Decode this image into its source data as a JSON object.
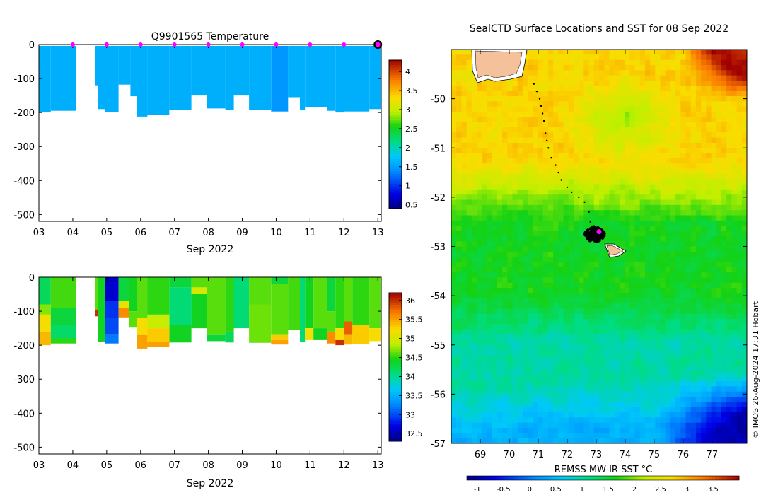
{
  "chart_data": [
    {
      "id": "temperature",
      "type": "heatmap",
      "title": "Q9901565  Temperature",
      "xlabel": "Sep 2022",
      "x_ticks": [
        "03",
        "04",
        "05",
        "06",
        "07",
        "08",
        "09",
        "10",
        "11",
        "12",
        "13"
      ],
      "x_range": [
        3.0,
        13.1
      ],
      "ylim": [
        -520,
        0
      ],
      "y_ticks": [
        0,
        -100,
        -200,
        -300,
        -400,
        -500
      ],
      "colorbar": {
        "ticks": [
          0.5,
          1,
          1.5,
          2,
          2.5,
          3,
          3.5,
          4
        ],
        "range": [
          0.4,
          4.3
        ]
      },
      "surface_markers_day": [
        4,
        5,
        6,
        7,
        8,
        9,
        10,
        11,
        12
      ],
      "current_marker_day": 13,
      "profiles": [
        {
          "x0": 3.0,
          "x1": 3.35,
          "depth": 200,
          "value": 1.6
        },
        {
          "x0": 3.35,
          "x1": 4.1,
          "depth": 195,
          "value": 1.6
        },
        {
          "x0": 4.65,
          "x1": 4.75,
          "depth": 120,
          "value": 1.6
        },
        {
          "x0": 4.75,
          "x1": 4.95,
          "depth": 190,
          "value": 1.6
        },
        {
          "x0": 4.95,
          "x1": 5.35,
          "depth": 198,
          "value": 1.6
        },
        {
          "x0": 5.35,
          "x1": 5.7,
          "depth": 118,
          "value": 1.6
        },
        {
          "x0": 5.7,
          "x1": 5.9,
          "depth": 152,
          "value": 1.6
        },
        {
          "x0": 5.9,
          "x1": 6.2,
          "depth": 212,
          "value": 1.6
        },
        {
          "x0": 6.2,
          "x1": 6.85,
          "depth": 208,
          "value": 1.6
        },
        {
          "x0": 6.85,
          "x1": 7.5,
          "depth": 192,
          "value": 1.6
        },
        {
          "x0": 7.5,
          "x1": 7.95,
          "depth": 150,
          "value": 1.6
        },
        {
          "x0": 7.95,
          "x1": 8.5,
          "depth": 188,
          "value": 1.6
        },
        {
          "x0": 8.5,
          "x1": 8.75,
          "depth": 192,
          "value": 1.6
        },
        {
          "x0": 8.75,
          "x1": 9.2,
          "depth": 150,
          "value": 1.6
        },
        {
          "x0": 9.2,
          "x1": 9.85,
          "depth": 193,
          "value": 1.6
        },
        {
          "x0": 9.85,
          "x1": 10.35,
          "depth": 197,
          "value": 1.45
        },
        {
          "x0": 10.35,
          "x1": 10.7,
          "depth": 155,
          "value": 1.6
        },
        {
          "x0": 10.7,
          "x1": 10.85,
          "depth": 192,
          "value": 1.6
        },
        {
          "x0": 10.85,
          "x1": 11.5,
          "depth": 185,
          "value": 1.6
        },
        {
          "x0": 11.5,
          "x1": 11.75,
          "depth": 195,
          "value": 1.6
        },
        {
          "x0": 11.75,
          "x1": 12.0,
          "depth": 200,
          "value": 1.6
        },
        {
          "x0": 12.0,
          "x1": 12.75,
          "depth": 197,
          "value": 1.6
        },
        {
          "x0": 12.75,
          "x1": 13.1,
          "depth": 190,
          "value": 1.6
        }
      ]
    },
    {
      "id": "salinity",
      "type": "heatmap",
      "title": "",
      "xlabel": "Sep 2022",
      "x_ticks": [
        "03",
        "04",
        "05",
        "06",
        "07",
        "08",
        "09",
        "10",
        "11",
        "12",
        "13"
      ],
      "x_range": [
        3.0,
        13.1
      ],
      "ylim": [
        -520,
        0
      ],
      "y_ticks": [
        0,
        -100,
        -200,
        -300,
        -400,
        -500
      ],
      "colorbar": {
        "ticks": [
          32.5,
          33,
          33.5,
          34,
          34.5,
          35,
          35.5,
          36
        ],
        "range": [
          32.3,
          36.2
        ]
      },
      "profiles": [
        {
          "x0": 3.0,
          "x1": 3.35,
          "depth": 200,
          "bands": [
            [
              0,
              80,
              34.2
            ],
            [
              80,
              110,
              34.7
            ],
            [
              110,
              160,
              35.2
            ],
            [
              160,
              200,
              35.4
            ]
          ]
        },
        {
          "x0": 3.35,
          "x1": 4.1,
          "depth": 195,
          "bands": [
            [
              0,
              90,
              34.55
            ],
            [
              90,
              140,
              34.3
            ],
            [
              140,
              180,
              34.15
            ],
            [
              180,
              195,
              34.5
            ]
          ]
        },
        {
          "x0": 4.65,
          "x1": 4.75,
          "depth": 115,
          "bands": [
            [
              0,
              95,
              34.6
            ],
            [
              95,
              115,
              36.0
            ]
          ]
        },
        {
          "x0": 4.75,
          "x1": 4.95,
          "depth": 190,
          "bands": [
            [
              0,
              190,
              34.4
            ]
          ]
        },
        {
          "x0": 4.95,
          "x1": 5.35,
          "depth": 195,
          "bands": [
            [
              0,
              70,
              32.6
            ],
            [
              70,
              120,
              32.9
            ],
            [
              120,
              170,
              33.0
            ],
            [
              170,
              195,
              33.2
            ]
          ]
        },
        {
          "x0": 5.35,
          "x1": 5.65,
          "depth": 118,
          "bands": [
            [
              0,
              70,
              34.3
            ],
            [
              70,
              90,
              35.1
            ],
            [
              90,
              118,
              35.6
            ]
          ]
        },
        {
          "x0": 5.65,
          "x1": 5.9,
          "depth": 148,
          "bands": [
            [
              0,
              100,
              34.4
            ],
            [
              100,
              148,
              34.6
            ]
          ]
        },
        {
          "x0": 5.9,
          "x1": 6.2,
          "depth": 210,
          "bands": [
            [
              0,
              120,
              34.6
            ],
            [
              120,
              170,
              35.2
            ],
            [
              170,
              210,
              35.5
            ]
          ]
        },
        {
          "x0": 6.2,
          "x1": 6.85,
          "depth": 206,
          "bands": [
            [
              0,
              110,
              34.5
            ],
            [
              110,
              150,
              34.9
            ],
            [
              150,
              190,
              35.3
            ],
            [
              190,
              206,
              35.5
            ]
          ]
        },
        {
          "x0": 6.85,
          "x1": 7.5,
          "depth": 192,
          "bands": [
            [
              0,
              30,
              34.3
            ],
            [
              30,
              140,
              34.1
            ],
            [
              140,
              192,
              34.4
            ]
          ]
        },
        {
          "x0": 7.5,
          "x1": 7.95,
          "depth": 150,
          "bands": [
            [
              0,
              30,
              34.6
            ],
            [
              30,
              50,
              35.0
            ],
            [
              50,
              150,
              34.4
            ]
          ]
        },
        {
          "x0": 7.95,
          "x1": 8.5,
          "depth": 188,
          "bands": [
            [
              0,
              170,
              34.6
            ],
            [
              170,
              188,
              34.3
            ]
          ]
        },
        {
          "x0": 8.5,
          "x1": 8.75,
          "depth": 192,
          "bands": [
            [
              0,
              160,
              34.5
            ],
            [
              160,
              192,
              34.2
            ]
          ]
        },
        {
          "x0": 8.75,
          "x1": 9.2,
          "depth": 150,
          "bands": [
            [
              0,
              150,
              34.1
            ]
          ]
        },
        {
          "x0": 9.2,
          "x1": 9.85,
          "depth": 193,
          "bands": [
            [
              0,
              80,
              34.6
            ],
            [
              80,
              193,
              34.65
            ]
          ]
        },
        {
          "x0": 9.85,
          "x1": 10.35,
          "depth": 198,
          "bands": [
            [
              0,
              20,
              34.3
            ],
            [
              20,
              170,
              34.6
            ],
            [
              170,
              185,
              35.3
            ],
            [
              185,
              198,
              35.5
            ]
          ]
        },
        {
          "x0": 10.35,
          "x1": 10.7,
          "depth": 155,
          "bands": [
            [
              0,
              155,
              34.55
            ]
          ]
        },
        {
          "x0": 10.7,
          "x1": 10.85,
          "depth": 190,
          "bands": [
            [
              0,
              190,
              34.1
            ]
          ]
        },
        {
          "x0": 10.85,
          "x1": 11.1,
          "depth": 185,
          "bands": [
            [
              0,
              150,
              34.4
            ],
            [
              150,
              185,
              35.2
            ]
          ]
        },
        {
          "x0": 11.1,
          "x1": 11.5,
          "depth": 185,
          "bands": [
            [
              0,
              150,
              34.6
            ],
            [
              150,
              185,
              34.4
            ]
          ]
        },
        {
          "x0": 11.5,
          "x1": 11.75,
          "depth": 195,
          "bands": [
            [
              0,
              100,
              34.3
            ],
            [
              100,
              160,
              34.6
            ],
            [
              160,
              195,
              35.6
            ]
          ]
        },
        {
          "x0": 11.75,
          "x1": 12.0,
          "depth": 200,
          "bands": [
            [
              0,
              150,
              34.5
            ],
            [
              150,
              185,
              35.2
            ],
            [
              185,
              200,
              36.0
            ]
          ]
        },
        {
          "x0": 12.0,
          "x1": 12.25,
          "depth": 198,
          "bands": [
            [
              0,
              130,
              34.6
            ],
            [
              130,
              170,
              35.8
            ],
            [
              170,
              198,
              35.4
            ]
          ]
        },
        {
          "x0": 12.25,
          "x1": 12.75,
          "depth": 197,
          "bands": [
            [
              0,
              140,
              34.5
            ],
            [
              140,
              197,
              35.3
            ]
          ]
        },
        {
          "x0": 12.75,
          "x1": 13.1,
          "depth": 188,
          "bands": [
            [
              0,
              150,
              34.6
            ],
            [
              150,
              188,
              35.2
            ]
          ]
        }
      ]
    },
    {
      "id": "sst_map",
      "type": "heatmap",
      "title": "SealCTD Surface Locations and SST for 08 Sep 2022",
      "x_ticks": [
        "69",
        "70",
        "71",
        "72",
        "73",
        "74",
        "75",
        "76",
        "77"
      ],
      "x_range": [
        68.0,
        78.2
      ],
      "y_ticks": [
        "-50",
        "-51",
        "-52",
        "-53",
        "-54",
        "-55",
        "-56",
        "-57"
      ],
      "y_range": [
        -57.0,
        -49.0
      ],
      "colorbar_label": "REMSS MW-IR SST °C",
      "colorbar_ticks": [
        "-1",
        "-0.5",
        "0",
        "0.5",
        "1",
        "1.5",
        "2",
        "2.5",
        "3",
        "3.5"
      ],
      "colorbar_range": [
        -1.2,
        4.0
      ],
      "sst_regions": [
        {
          "zone": "north",
          "value": 2.75
        },
        {
          "zone": "northeast",
          "value": 3.9
        },
        {
          "zone": "central",
          "value": 1.6
        },
        {
          "zone": "south",
          "value": 1.0
        },
        {
          "zone": "southwest",
          "value": 0.4
        },
        {
          "zone": "southeast",
          "value": -0.9
        }
      ],
      "track_points": [
        [
          70.85,
          -49.7
        ],
        [
          70.95,
          -49.85
        ],
        [
          71.05,
          -50.0
        ],
        [
          71.1,
          -50.15
        ],
        [
          71.15,
          -50.3
        ],
        [
          71.2,
          -50.45
        ],
        [
          71.25,
          -50.7
        ],
        [
          71.3,
          -50.85
        ],
        [
          71.35,
          -51.0
        ],
        [
          71.45,
          -51.2
        ],
        [
          71.6,
          -51.35
        ],
        [
          71.7,
          -51.5
        ],
        [
          71.8,
          -51.65
        ],
        [
          72.0,
          -51.8
        ],
        [
          72.15,
          -51.9
        ],
        [
          72.4,
          -52.0
        ],
        [
          72.6,
          -52.1
        ],
        [
          72.75,
          -52.3
        ],
        [
          72.8,
          -52.5
        ],
        [
          72.9,
          -52.6
        ]
      ],
      "cluster_center": [
        72.95,
        -52.75
      ],
      "current_position": [
        73.1,
        -52.7
      ]
    }
  ],
  "watermark": "© IMOS 26-Aug-2024 17:31 Hobart"
}
